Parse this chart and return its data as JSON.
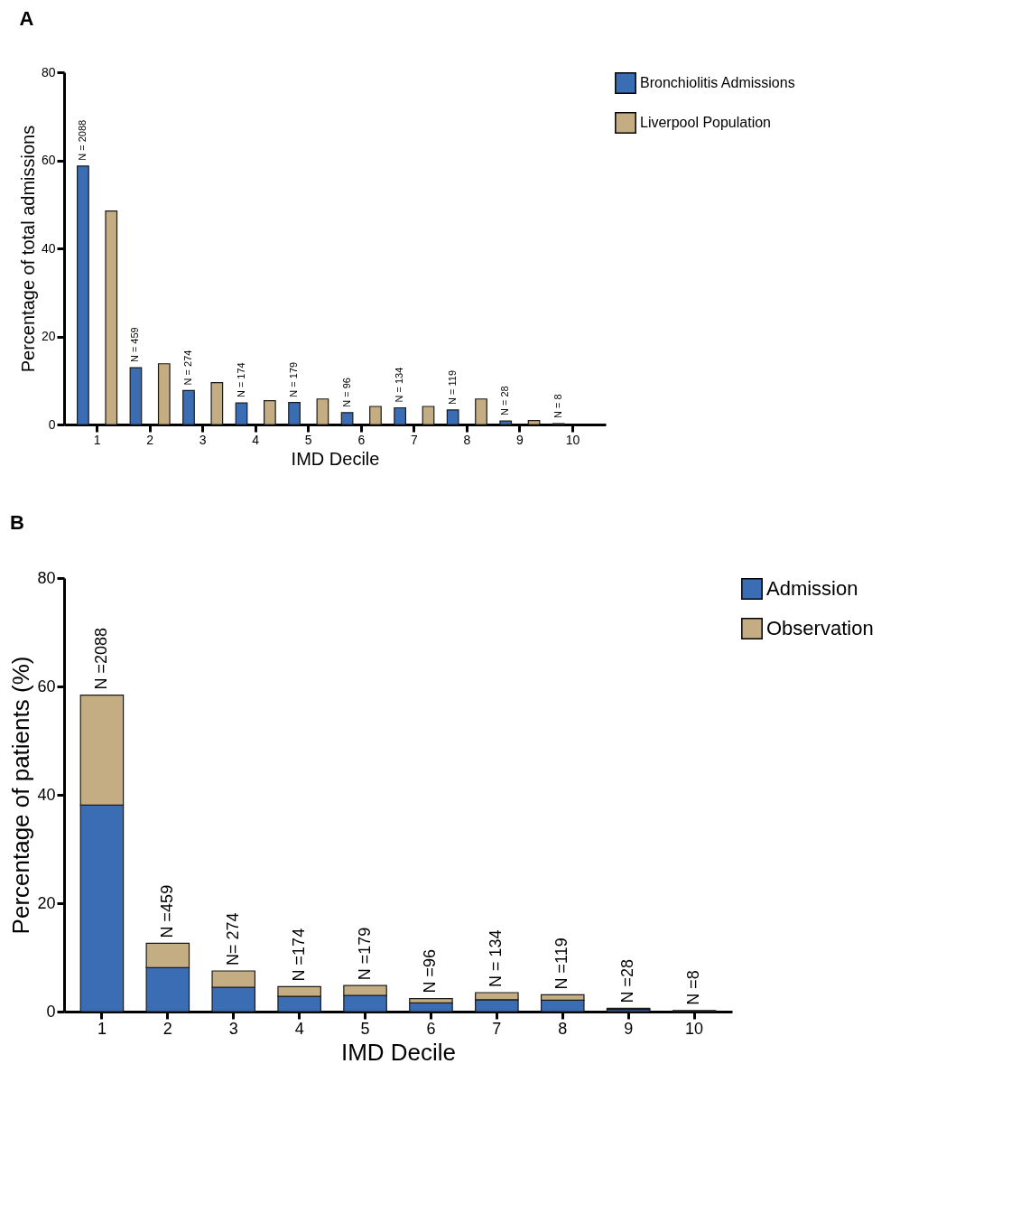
{
  "chart_data": [
    {
      "type": "bar",
      "title": "A",
      "xlabel": "IMD Decile",
      "ylabel": "Percentage of total admissions",
      "categories": [
        "1",
        "2",
        "3",
        "4",
        "5",
        "6",
        "7",
        "8",
        "9",
        "10"
      ],
      "series": [
        {
          "name": "Bronchiolitis Admissions",
          "color": "#3b6db4",
          "values": [
            58.7,
            12.9,
            7.7,
            4.9,
            5.0,
            2.7,
            3.8,
            3.3,
            0.8,
            0.2
          ]
        },
        {
          "name": "Liverpool Population",
          "color": "#c5ad83",
          "values": [
            48.5,
            13.8,
            9.5,
            5.4,
            5.8,
            4.1,
            4.1,
            5.8,
            0.9,
            0
          ]
        }
      ],
      "ylim": [
        0,
        80
      ],
      "yticks": [
        0,
        20,
        40,
        60,
        80
      ],
      "grid": false,
      "legend": "top right",
      "annotations": [
        "N = 2088",
        "N = 459",
        "N = 274",
        "N = 174",
        "N = 179",
        "N = 96",
        "N = 134",
        "N = 119",
        "N = 28",
        "N = 8"
      ]
    },
    {
      "type": "bar",
      "title": "B",
      "xlabel": "IMD Decile",
      "ylabel": "Percentage of patients (%)",
      "stacked": true,
      "categories": [
        "1",
        "2",
        "3",
        "4",
        "5",
        "6",
        "7",
        "8",
        "9",
        "10"
      ],
      "series": [
        {
          "name": "Admission",
          "color": "#3b6db4",
          "values": [
            38.1,
            8.1,
            4.5,
            2.8,
            3.0,
            1.6,
            2.2,
            2.1,
            0.4,
            0.2
          ]
        },
        {
          "name": "Observation",
          "color": "#c5ad83",
          "values": [
            20.3,
            4.5,
            3.0,
            1.8,
            1.8,
            0.8,
            1.3,
            1.0,
            0.2,
            0
          ]
        }
      ],
      "ylim": [
        0,
        80
      ],
      "yticks": [
        0,
        20,
        40,
        60,
        80
      ],
      "grid": false,
      "legend": "top right",
      "annotations": [
        {
          "text": "N =2088",
          "x": "1",
          "y": 58.4
        },
        {
          "text": "N =459",
          "x": "2",
          "y": 12.6
        },
        {
          "text": "N= 274",
          "x": "3",
          "y": 7.5
        },
        {
          "text": "N =174",
          "x": "4",
          "y": 4.6
        },
        {
          "text": "N =179",
          "x": "5",
          "y": 4.8
        },
        {
          "text": "N =96",
          "x": "6",
          "y": 2.4
        },
        {
          "text": "N = 134",
          "x": "7",
          "y": 3.5
        },
        {
          "text": "N =119",
          "x": "8",
          "y": 3.1
        },
        {
          "text": "N =28",
          "x": "9",
          "y": 0.6
        },
        {
          "text": "N =8",
          "x": "10",
          "y": 0.2
        }
      ]
    }
  ]
}
